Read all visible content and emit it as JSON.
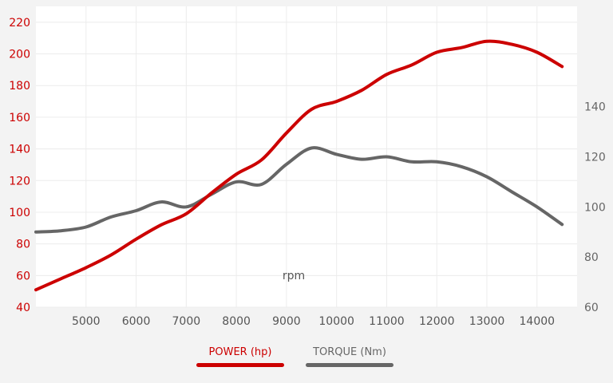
{
  "chart_data": {
    "type": "line",
    "x_axis": {
      "label": "rpm",
      "ticks": [
        5000,
        6000,
        7000,
        8000,
        9000,
        10000,
        11000,
        12000,
        13000,
        14000
      ],
      "range": [
        4000,
        14800
      ]
    },
    "y_axis_left": {
      "ticks": [
        40,
        60,
        80,
        100,
        120,
        140,
        160,
        180,
        200,
        220
      ],
      "range": [
        40,
        230
      ]
    },
    "y_axis_right": {
      "ticks": [
        60,
        80,
        100,
        120,
        140
      ],
      "range": [
        60,
        180
      ]
    },
    "grid": true,
    "legend_position": "bottom",
    "colors": {
      "power": "#cc0000",
      "torque": "#666666"
    },
    "series": [
      {
        "name": "POWER (hp)",
        "axis": "left",
        "x": [
          4000,
          4500,
          5000,
          5500,
          6000,
          6500,
          7000,
          7500,
          8000,
          8500,
          9000,
          9500,
          10000,
          10500,
          11000,
          11500,
          12000,
          12500,
          13000,
          13500,
          14000,
          14500
        ],
        "values": [
          51,
          58,
          65,
          73,
          83,
          92,
          99,
          112,
          124,
          133,
          150,
          165,
          170,
          177,
          187,
          193,
          201,
          204,
          208,
          206,
          201,
          192
        ]
      },
      {
        "name": "TORQUE (Nm)",
        "axis": "right",
        "x": [
          4000,
          4500,
          5000,
          5500,
          6000,
          6500,
          7000,
          7500,
          8000,
          8500,
          9000,
          9500,
          10000,
          10500,
          11000,
          11500,
          12000,
          12500,
          13000,
          13500,
          14000,
          14500
        ],
        "values": [
          90,
          90.5,
          92,
          96,
          98.5,
          102,
          100,
          105,
          110,
          109,
          117,
          123.5,
          121,
          119,
          120,
          118,
          118,
          116,
          112,
          106,
          100,
          93
        ]
      }
    ]
  }
}
